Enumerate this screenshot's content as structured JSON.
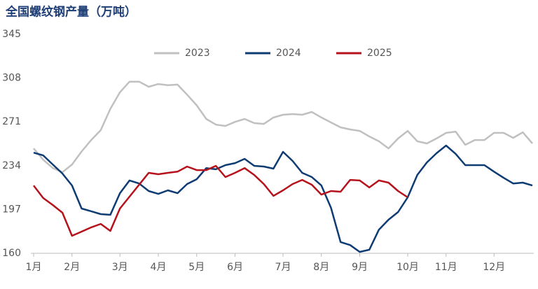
{
  "chart_data": {
    "type": "line",
    "title": "全国螺纹钢产量（万吨）",
    "categories": [
      "1月",
      null,
      null,
      null,
      "2月",
      null,
      null,
      null,
      null,
      "3月",
      null,
      null,
      null,
      "4月",
      null,
      null,
      null,
      "5月",
      null,
      null,
      null,
      "6月",
      null,
      null,
      null,
      null,
      "7月",
      null,
      null,
      null,
      "8月",
      null,
      null,
      null,
      "9月",
      null,
      null,
      null,
      null,
      "10月",
      null,
      null,
      null,
      "11月",
      null,
      null,
      null,
      null,
      "12月",
      null,
      null,
      null,
      null
    ],
    "series": [
      {
        "name": "2023",
        "color": "#c0c0c0",
        "values": [
          248.6,
          239,
          232,
          228.5,
          235,
          246,
          255.7,
          264,
          282,
          296,
          305,
          305,
          300.7,
          303,
          302,
          302.5,
          294,
          285,
          273.5,
          268.7,
          267.6,
          271,
          273.5,
          270,
          269.3,
          274.7,
          277,
          277.6,
          277,
          279.4,
          274.7,
          270.5,
          266.4,
          264.6,
          263.4,
          258.7,
          254.6,
          248.6,
          257,
          263.4,
          254.6,
          252.8,
          257,
          261.7,
          262.8,
          251.6,
          255.7,
          255.7,
          261.7,
          261.7,
          257.5,
          262.2,
          252.8
        ]
      },
      {
        "name": "2024",
        "color": "#0e3c72",
        "values": [
          245,
          242.7,
          235,
          227.4,
          217.3,
          197.8,
          195.5,
          193.1,
          192.5,
          210.8,
          221.5,
          219,
          212.6,
          210.2,
          213.2,
          210.8,
          218.5,
          222.6,
          232,
          231,
          234.5,
          236.2,
          239.8,
          233.9,
          233.3,
          231.5,
          245.7,
          238,
          228,
          224.4,
          217.3,
          198.4,
          169.5,
          167,
          161.2,
          163,
          180,
          188.4,
          194.9,
          207.3,
          226.2,
          236.8,
          244.5,
          251,
          244,
          234.5,
          234.5,
          234.5,
          229,
          223.8,
          219,
          219.7,
          217.3
        ]
      },
      {
        "name": "2025",
        "color": "#b5121b",
        "values": [
          217.3,
          206.7,
          200.8,
          194.3,
          174.8,
          178.3,
          181.9,
          184.8,
          178.9,
          197.8,
          207.9,
          217.9,
          228,
          226.8,
          228,
          229,
          233.3,
          230.3,
          230.3,
          233.9,
          224.4,
          228,
          232,
          226.2,
          218.5,
          208.5,
          213.2,
          218.5,
          222,
          217.9,
          209.6,
          212.6,
          212,
          222,
          221.5,
          215.6,
          221.5,
          219.7,
          212.6,
          207.3,
          null,
          null,
          null,
          null,
          null,
          null,
          null,
          null,
          null,
          null,
          null,
          null,
          null
        ]
      }
    ],
    "ylim": [
      160,
      345
    ],
    "yticks": [
      160,
      197,
      234,
      271,
      308,
      345
    ],
    "grid": false,
    "legend": "top"
  }
}
